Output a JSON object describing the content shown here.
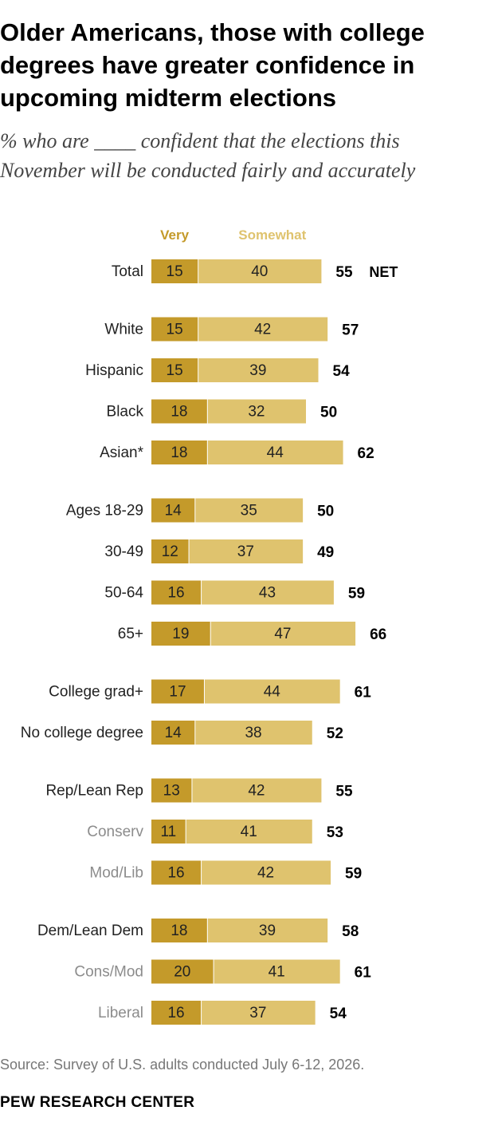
{
  "title": "Older Americans, those with college degrees have greater confidence in upcoming midterm elections",
  "subtitle": "% who are ____ confident that the elections this November will be conducted fairly and accurately",
  "source": "Source: Survey of U.S. adults conducted July 6-12, 2026.",
  "branding": "PEW RESEARCH CENTER",
  "colors": {
    "very": "#c49a2a",
    "somewhat": "#dfc36e",
    "sub_label": "#8c8c8c"
  },
  "chart_data": {
    "type": "bar",
    "orientation": "horizontal",
    "stacked": true,
    "legend": [
      "Very",
      "Somewhat"
    ],
    "net_suffix": "NET",
    "xlim": [
      0,
      100
    ],
    "categories": [
      "Total",
      "White",
      "Hispanic",
      "Black",
      "Asian*",
      "Ages 18-29",
      "30-49",
      "50-64",
      "65+",
      "College grad+",
      "No college degree",
      "Rep/Lean Rep",
      "Conserv",
      "Mod/Lib",
      "Dem/Lean Dem",
      "Cons/Mod",
      "Liberal"
    ],
    "category_group": [
      0,
      1,
      1,
      1,
      1,
      2,
      2,
      2,
      2,
      3,
      3,
      4,
      4,
      4,
      5,
      5,
      5
    ],
    "subcategory": [
      false,
      false,
      false,
      false,
      false,
      false,
      false,
      false,
      false,
      false,
      false,
      false,
      true,
      true,
      false,
      true,
      true
    ],
    "series": [
      {
        "name": "Very",
        "values": [
          15,
          15,
          15,
          18,
          18,
          14,
          12,
          16,
          19,
          17,
          14,
          13,
          11,
          16,
          18,
          20,
          16
        ]
      },
      {
        "name": "Somewhat",
        "values": [
          40,
          42,
          39,
          32,
          44,
          35,
          37,
          43,
          47,
          44,
          38,
          42,
          41,
          42,
          39,
          41,
          37
        ]
      }
    ],
    "net": [
      55,
      57,
      54,
      50,
      62,
      50,
      49,
      59,
      66,
      61,
      52,
      55,
      53,
      59,
      58,
      61,
      54
    ]
  }
}
